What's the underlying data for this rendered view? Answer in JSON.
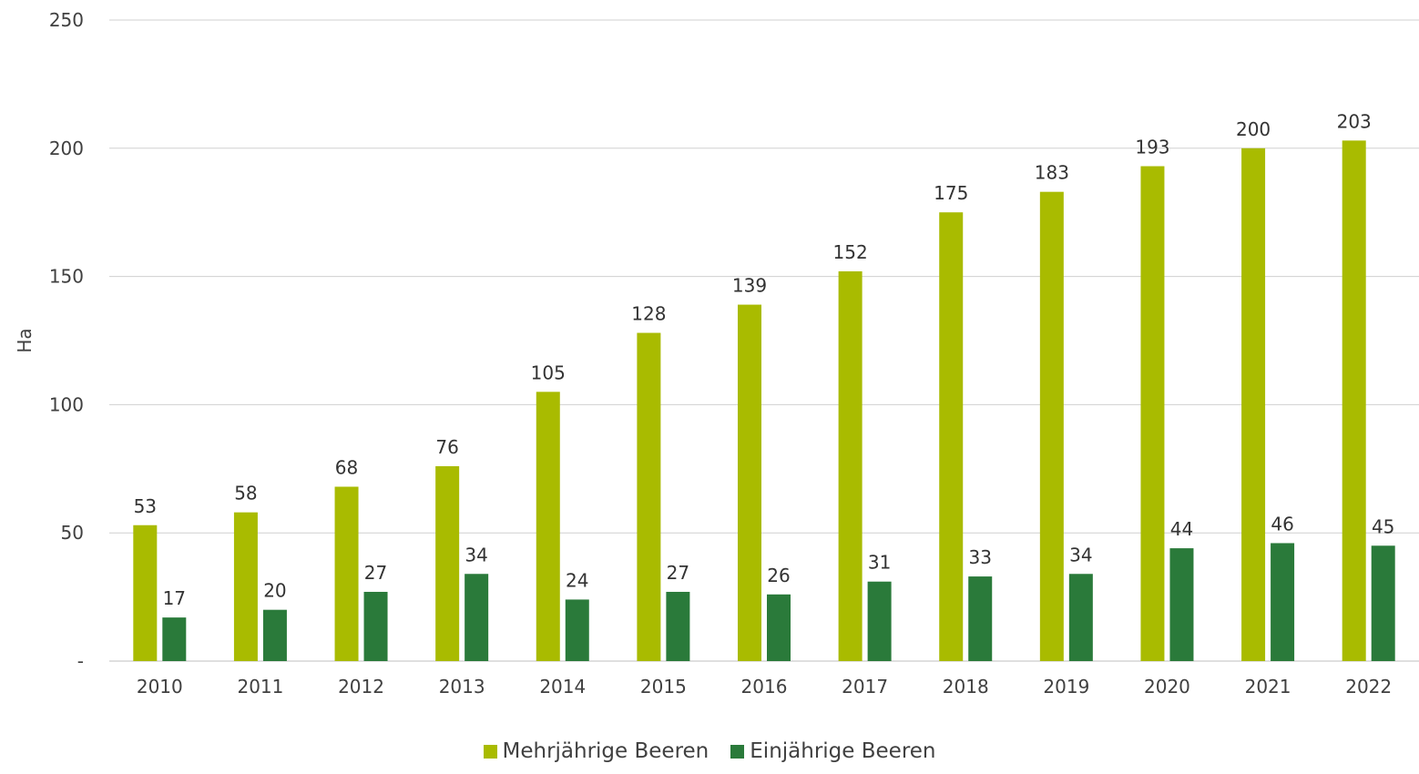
{
  "chart_data": {
    "type": "bar",
    "categories": [
      "2010",
      "2011",
      "2012",
      "2013",
      "2014",
      "2015",
      "2016",
      "2017",
      "2018",
      "2019",
      "2020",
      "2021",
      "2022"
    ],
    "series": [
      {
        "name": "Mehrjährige Beeren",
        "color": "#a9bb00",
        "values": [
          53,
          58,
          68,
          76,
          105,
          128,
          139,
          152,
          175,
          183,
          193,
          200,
          203
        ]
      },
      {
        "name": "Einjährige Beeren",
        "color": "#2a7a3a",
        "values": [
          17,
          20,
          27,
          34,
          24,
          27,
          26,
          31,
          33,
          34,
          44,
          46,
          45
        ]
      }
    ],
    "ylabel": "Ha",
    "ylim": [
      0,
      250
    ],
    "yticks": [
      {
        "value": 0,
        "label": "-"
      },
      {
        "value": 50,
        "label": "50"
      },
      {
        "value": 100,
        "label": "100"
      },
      {
        "value": 150,
        "label": "150"
      },
      {
        "value": 200,
        "label": "200"
      },
      {
        "value": 250,
        "label": "250"
      }
    ],
    "grid": true,
    "legend": "bottom"
  }
}
